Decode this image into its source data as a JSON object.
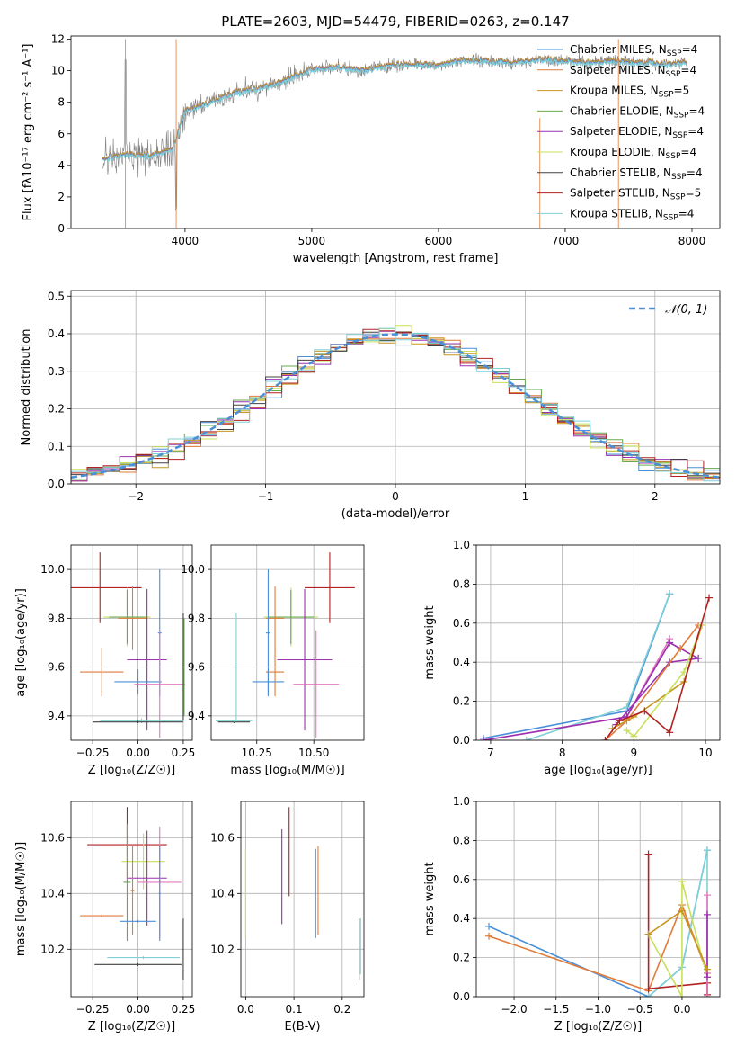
{
  "title": "PLATE=2603, MJD=54479, FIBERID=0263, z=0.147",
  "colors": {
    "chabrier_miles": "#4a90d9",
    "salpeter_miles": "#e07b39",
    "kroupa_miles": "#c8961e",
    "chabrier_elodie": "#6aa84f",
    "salpeter_elodie": "#9b30b0",
    "kroupa_elodie": "#c6e05a",
    "chabrier_stelib": "#404040",
    "salpeter_stelib": "#b22222",
    "kroupa_stelib": "#7fd0d8",
    "data_gray": "#808080",
    "pink": "#e377c2",
    "gauss": "#4a90d9"
  },
  "chart_data": [
    {
      "type": "line",
      "id": "spectrum",
      "xlabel": "wavelength [Angstrom, rest frame]",
      "ylabel": "Flux [fλ10⁻¹⁷ erg cm⁻² s⁻¹ A⁻¹]",
      "xlim": [
        3100,
        8220
      ],
      "ylim": [
        0,
        12.2
      ],
      "xticks": [
        4000,
        5000,
        6000,
        7000,
        8000
      ],
      "yticks": [
        0,
        2,
        4,
        6,
        8,
        10,
        12
      ],
      "legend_placement": "top-right",
      "legend": [
        "Chabrier MILES, N_SSP=4",
        "Salpeter MILES, N_SSP=4",
        "Kroupa MILES, N_SSP=5",
        "Chabrier ELODIE, N_SSP=4",
        "Salpeter ELODIE, N_SSP=4",
        "Kroupa ELODIE, N_SSP=4",
        "Chabrier STELIB, N_SSP=4",
        "Salpeter STELIB, N_SSP=5",
        "Kroupa STELIB, N_SSP=4"
      ],
      "continuum": [
        [
          3350,
          4.4
        ],
        [
          3500,
          4.7
        ],
        [
          3700,
          4.6
        ],
        [
          3900,
          5.0
        ],
        [
          4000,
          7.4
        ],
        [
          4200,
          8.0
        ],
        [
          4400,
          8.6
        ],
        [
          4600,
          8.9
        ],
        [
          4800,
          9.4
        ],
        [
          5000,
          10.1
        ],
        [
          5200,
          10.2
        ],
        [
          5400,
          10.0
        ],
        [
          5600,
          10.3
        ],
        [
          5800,
          10.4
        ],
        [
          6000,
          10.3
        ],
        [
          6200,
          10.7
        ],
        [
          6400,
          10.6
        ],
        [
          6600,
          10.5
        ],
        [
          6800,
          10.7
        ],
        [
          7000,
          10.6
        ],
        [
          7200,
          10.5
        ],
        [
          7400,
          10.6
        ],
        [
          7600,
          10.5
        ],
        [
          7800,
          10.4
        ],
        [
          7950,
          10.5
        ]
      ]
    },
    {
      "type": "line",
      "id": "residuals",
      "xlabel": "(data-model)/error",
      "ylabel": "Normed distribution",
      "xlim": [
        -2.5,
        2.5
      ],
      "ylim": [
        0,
        0.515
      ],
      "xticks": [
        -2,
        -1,
        0,
        1,
        2
      ],
      "yticks": [
        0.0,
        0.1,
        0.2,
        0.3,
        0.4,
        0.5
      ],
      "legend": [
        "𝒩(0, 1)"
      ],
      "legend_placement": "top-right"
    },
    {
      "type": "scatter",
      "id": "age_vs_z",
      "xlabel": "Z [log₁₀(Z/Z☉)]",
      "ylabel": "age  [log₁₀(age/yr)]",
      "xlim": [
        -0.37,
        0.3
      ],
      "ylim": [
        9.3,
        10.1
      ],
      "xticks": [
        -0.25,
        0.0,
        0.25
      ],
      "yticks": [
        9.4,
        9.6,
        9.8,
        10.0
      ],
      "points": [
        {
          "x": -0.21,
          "y": 9.925,
          "xerr": 0.23,
          "yerr": 0.145,
          "color": "salpeter_stelib"
        },
        {
          "x": -0.06,
          "y": 9.805,
          "xerr": 0.13,
          "yerr": 0.12,
          "color": "kroupa_elodie"
        },
        {
          "x": -0.06,
          "y": 9.805,
          "xerr": 0.1,
          "yerr": 0.11,
          "color": "chabrier_elodie"
        },
        {
          "x": -0.03,
          "y": 9.8,
          "xerr": 0.08,
          "yerr": 0.13,
          "color": "salpeter_miles"
        },
        {
          "x": 0.05,
          "y": 9.63,
          "xerr": 0.11,
          "yerr": 0.29,
          "color": "salpeter_elodie"
        },
        {
          "x": 0.12,
          "y": 9.74,
          "xerr": 0.01,
          "yerr": 0.26,
          "color": "chabrier_miles"
        },
        {
          "x": -0.2,
          "y": 9.58,
          "xerr": 0.12,
          "yerr": 0.1,
          "color": "salpeter_miles"
        },
        {
          "x": 0.0,
          "y": 9.54,
          "xerr": 0.13,
          "yerr": 0.05,
          "color": "chabrier_miles"
        },
        {
          "x": 0.12,
          "y": 9.53,
          "xerr": 0.14,
          "yerr": 0.22,
          "color": "pink"
        },
        {
          "x": 0.02,
          "y": 9.38,
          "xerr": 0.23,
          "yerr": 0.01,
          "color": "kroupa_stelib"
        },
        {
          "x": 0.0,
          "y": 9.375,
          "xerr": 0.25,
          "yerr": 0.005,
          "color": "chabrier_stelib"
        },
        {
          "x": 0.25,
          "y": 9.6,
          "xerr": 0.003,
          "yerr": 0.22,
          "color": "chabrier_stelib"
        },
        {
          "x": 0.255,
          "y": 9.6,
          "xerr": 0.003,
          "yerr": 0.2,
          "color": "chabrier_elodie"
        }
      ]
    },
    {
      "type": "scatter",
      "id": "age_vs_mass",
      "xlabel": "mass [log₁₀(M/M☉)]",
      "ylabel": "",
      "xlim": [
        10.05,
        10.72
      ],
      "ylim": [
        9.3,
        10.1
      ],
      "xticks": [
        10.25,
        10.5
      ],
      "yticks": [
        9.4,
        9.6,
        9.8,
        10.0
      ],
      "points": [
        {
          "x": 10.57,
          "y": 9.925,
          "xerr": 0.11,
          "yerr": 0.145,
          "color": "salpeter_stelib"
        },
        {
          "x": 10.4,
          "y": 9.805,
          "xerr": 0.12,
          "yerr": 0.12,
          "color": "kroupa_elodie"
        },
        {
          "x": 10.4,
          "y": 9.805,
          "xerr": 0.1,
          "yerr": 0.11,
          "color": "chabrier_elodie"
        },
        {
          "x": 10.33,
          "y": 9.8,
          "xerr": 0.04,
          "yerr": 0.13,
          "color": "salpeter_miles"
        },
        {
          "x": 10.46,
          "y": 9.63,
          "xerr": 0.12,
          "yerr": 0.29,
          "color": "salpeter_elodie"
        },
        {
          "x": 10.3,
          "y": 9.74,
          "xerr": 0.01,
          "yerr": 0.26,
          "color": "chabrier_miles"
        },
        {
          "x": 10.33,
          "y": 9.58,
          "xerr": 0.04,
          "yerr": 0.1,
          "color": "salpeter_miles"
        },
        {
          "x": 10.3,
          "y": 9.54,
          "xerr": 0.07,
          "yerr": 0.05,
          "color": "chabrier_miles"
        },
        {
          "x": 10.51,
          "y": 9.53,
          "xerr": 0.1,
          "yerr": 0.22,
          "color": "pink"
        },
        {
          "x": 10.16,
          "y": 9.6,
          "xerr": 0.005,
          "yerr": 0.22,
          "color": "kroupa_stelib"
        },
        {
          "x": 10.15,
          "y": 9.375,
          "xerr": 0.07,
          "yerr": 0.005,
          "color": "chabrier_stelib"
        },
        {
          "x": 10.15,
          "y": 9.38,
          "xerr": 0.08,
          "yerr": 0.005,
          "color": "kroupa_stelib"
        }
      ]
    },
    {
      "type": "line",
      "id": "weight_vs_age",
      "xlabel": "age  [log₁₀(age/yr)]",
      "ylabel": "mass weight",
      "xlim": [
        6.8,
        10.2
      ],
      "ylim": [
        0,
        1.0
      ],
      "xticks": [
        7,
        8,
        9,
        10
      ],
      "yticks": [
        0.0,
        0.2,
        0.4,
        0.6,
        0.8,
        1.0
      ],
      "series": [
        {
          "color": "chabrier_miles",
          "x": [
            6.9,
            8.9,
            9.5
          ],
          "y": [
            0.01,
            0.15,
            0.75
          ]
        },
        {
          "color": "kroupa_stelib",
          "x": [
            7.5,
            8.9,
            9.5
          ],
          "y": [
            0.0,
            0.17,
            0.75
          ]
        },
        {
          "color": "pink",
          "x": [
            6.9,
            8.9,
            9.5
          ],
          "y": [
            0.0,
            0.12,
            0.52
          ]
        },
        {
          "color": "salpeter_elodie",
          "x": [
            6.9,
            8.9,
            9.5,
            9.9
          ],
          "y": [
            0.0,
            0.12,
            0.5,
            0.42
          ]
        },
        {
          "color": "salpeter_elodie",
          "x": [
            8.75,
            9.5,
            9.9
          ],
          "y": [
            0.08,
            0.4,
            0.42
          ]
        },
        {
          "color": "salpeter_miles",
          "x": [
            8.6,
            8.9,
            9.65,
            9.9
          ],
          "y": [
            0.0,
            0.1,
            0.47,
            0.59
          ]
        },
        {
          "color": "kroupa_miles",
          "x": [
            8.7,
            9.0,
            9.7,
            9.95
          ],
          "y": [
            0.06,
            0.12,
            0.3,
            0.59
          ]
        },
        {
          "color": "kroupa_elodie",
          "x": [
            8.9,
            9.0,
            9.7,
            9.95
          ],
          "y": [
            0.05,
            0.02,
            0.35,
            0.59
          ]
        },
        {
          "color": "salpeter_stelib",
          "x": [
            8.6,
            8.8,
            9.15,
            9.5,
            10.05
          ],
          "y": [
            0.0,
            0.1,
            0.15,
            0.04,
            0.73
          ]
        }
      ]
    },
    {
      "type": "scatter",
      "id": "mass_vs_z",
      "xlabel": "Z [log₁₀(Z/Z☉)]",
      "ylabel": "mass [log₁₀(M/M☉)]",
      "xlim": [
        -0.37,
        0.3
      ],
      "ylim": [
        10.03,
        10.73
      ],
      "xticks": [
        -0.25,
        0.0,
        0.25
      ],
      "yticks": [
        10.2,
        10.4,
        10.6
      ],
      "points": [
        {
          "x": -0.06,
          "y": 10.575,
          "xerr": 0.22,
          "yerr": 0.135,
          "color": "salpeter_stelib"
        },
        {
          "x": 0.03,
          "y": 10.515,
          "xerr": 0.12,
          "yerr": 0.1,
          "color": "kroupa_elodie"
        },
        {
          "x": 0.05,
          "y": 10.455,
          "xerr": 0.11,
          "yerr": 0.17,
          "color": "salpeter_elodie"
        },
        {
          "x": -0.06,
          "y": 10.44,
          "xerr": 0.02,
          "yerr": 0.21,
          "color": "chabrier_elodie"
        },
        {
          "x": -0.03,
          "y": 10.41,
          "xerr": 0.01,
          "yerr": 0.16,
          "color": "salpeter_miles"
        },
        {
          "x": 0.12,
          "y": 10.44,
          "xerr": 0.12,
          "yerr": 0.2,
          "color": "pink"
        },
        {
          "x": -0.2,
          "y": 10.32,
          "xerr": 0.12,
          "yerr": 0.005,
          "color": "salpeter_miles"
        },
        {
          "x": 0.0,
          "y": 10.3,
          "xerr": 0.1,
          "yerr": 0.005,
          "color": "chabrier_miles"
        },
        {
          "x": 0.12,
          "y": 10.4,
          "xerr": 0.005,
          "yerr": 0.17,
          "color": "chabrier_miles"
        },
        {
          "x": 0.03,
          "y": 10.17,
          "xerr": 0.2,
          "yerr": 0.005,
          "color": "kroupa_stelib"
        },
        {
          "x": 0.0,
          "y": 10.145,
          "xerr": 0.24,
          "yerr": 0.005,
          "color": "chabrier_stelib"
        },
        {
          "x": 0.25,
          "y": 10.2,
          "xerr": 0.003,
          "yerr": 0.11,
          "color": "chabrier_stelib"
        }
      ]
    },
    {
      "type": "scatter",
      "id": "mass_vs_ebv",
      "xlabel": "E(B-V)",
      "ylabel": "",
      "xlim": [
        -0.01,
        0.245
      ],
      "ylim": [
        10.03,
        10.73
      ],
      "xticks": [
        0.0,
        0.1,
        0.2
      ],
      "yticks": [
        10.2,
        10.4,
        10.6
      ],
      "points": [
        {
          "x": 0.0,
          "y": 10.4,
          "xerr": 0,
          "yerr": 0.16,
          "color": "kroupa_elodie"
        },
        {
          "x": 0.075,
          "y": 10.46,
          "xerr": 0,
          "yerr": 0.17,
          "color": "salpeter_elodie"
        },
        {
          "x": 0.09,
          "y": 10.55,
          "xerr": 0,
          "yerr": 0.16,
          "color": "salpeter_stelib"
        },
        {
          "x": 0.145,
          "y": 10.4,
          "xerr": 0,
          "yerr": 0.16,
          "color": "chabrier_miles"
        },
        {
          "x": 0.15,
          "y": 10.41,
          "xerr": 0,
          "yerr": 0.16,
          "color": "salpeter_miles"
        },
        {
          "x": 0.235,
          "y": 10.2,
          "xerr": 0,
          "yerr": 0.11,
          "color": "chabrier_stelib"
        },
        {
          "x": 0.238,
          "y": 10.21,
          "xerr": 0,
          "yerr": 0.1,
          "color": "kroupa_stelib"
        }
      ]
    },
    {
      "type": "line",
      "id": "weight_vs_z",
      "xlabel": "Z [log₁₀(Z/Z☉)]",
      "ylabel": "mass weight",
      "xlim": [
        -2.45,
        0.45
      ],
      "ylim": [
        0,
        1.0
      ],
      "xticks": [
        -2.0,
        -1.5,
        -1.0,
        -0.5,
        0.0
      ],
      "yticks": [
        0.0,
        0.2,
        0.4,
        0.6,
        0.8,
        1.0
      ],
      "series": [
        {
          "color": "chabrier_miles",
          "x": [
            -2.3,
            -0.4,
            0.0,
            0.3
          ],
          "y": [
            0.36,
            0.0,
            0.15,
            0.75
          ]
        },
        {
          "color": "salpeter_miles",
          "x": [
            -2.3,
            -0.4,
            0.0,
            0.3
          ],
          "y": [
            0.31,
            0.03,
            0.47,
            0.12
          ]
        },
        {
          "color": "kroupa_stelib",
          "x": [
            -0.4,
            0.0,
            0.3,
            0.3
          ],
          "y": [
            0.0,
            0.15,
            0.75,
            0.0
          ]
        },
        {
          "color": "salpeter_stelib",
          "x": [
            -0.4,
            -0.4,
            0.3,
            0.3
          ],
          "y": [
            0.73,
            0.04,
            0.07,
            0.01
          ]
        },
        {
          "color": "kroupa_elodie",
          "x": [
            -0.4,
            0.0,
            0.0,
            0.3
          ],
          "y": [
            0.32,
            0.0,
            0.59,
            0.1
          ]
        },
        {
          "color": "pink",
          "x": [
            0.3,
            0.3,
            0.3
          ],
          "y": [
            0.52,
            0.12,
            0.0
          ]
        },
        {
          "color": "salpeter_elodie",
          "x": [
            0.3,
            0.3
          ],
          "y": [
            0.1,
            0.42
          ]
        },
        {
          "color": "kroupa_miles",
          "x": [
            -0.4,
            0.0,
            0.3
          ],
          "y": [
            0.32,
            0.44,
            0.14
          ]
        }
      ]
    }
  ]
}
